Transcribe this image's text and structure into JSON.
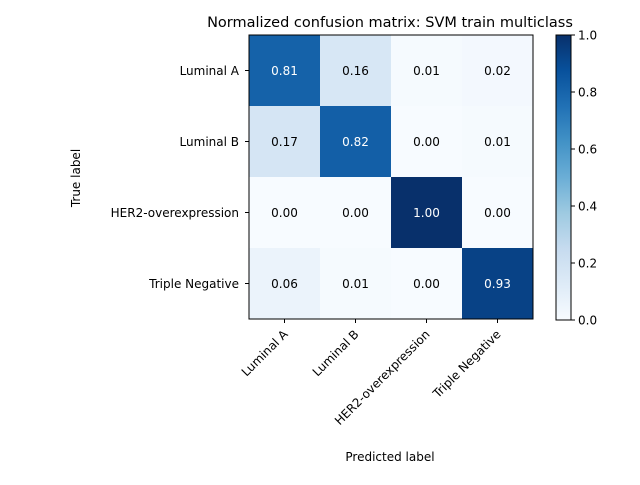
{
  "chart_data": {
    "type": "heatmap",
    "title": "Normalized confusion matrix: SVM train multiclass",
    "xlabel": "Predicted label",
    "ylabel": "True label",
    "x_categories": [
      "Luminal A",
      "Luminal B",
      "HER2-overexpression",
      "Triple Negative"
    ],
    "y_categories": [
      "Luminal A",
      "Luminal B",
      "HER2-overexpression",
      "Triple Negative"
    ],
    "matrix": [
      [
        0.81,
        0.16,
        0.01,
        0.02
      ],
      [
        0.17,
        0.82,
        0.0,
        0.01
      ],
      [
        0.0,
        0.0,
        1.0,
        0.0
      ],
      [
        0.06,
        0.01,
        0.0,
        0.93
      ]
    ],
    "value_format": "0.00",
    "colormap": "Blues",
    "colorbar": {
      "range": [
        0.0,
        1.0
      ],
      "ticks": [
        0.0,
        0.2,
        0.4,
        0.6,
        0.8,
        1.0
      ],
      "tick_labels": [
        "0.0",
        "0.2",
        "0.4",
        "0.6",
        "0.8",
        "1.0"
      ]
    },
    "grid": false
  }
}
